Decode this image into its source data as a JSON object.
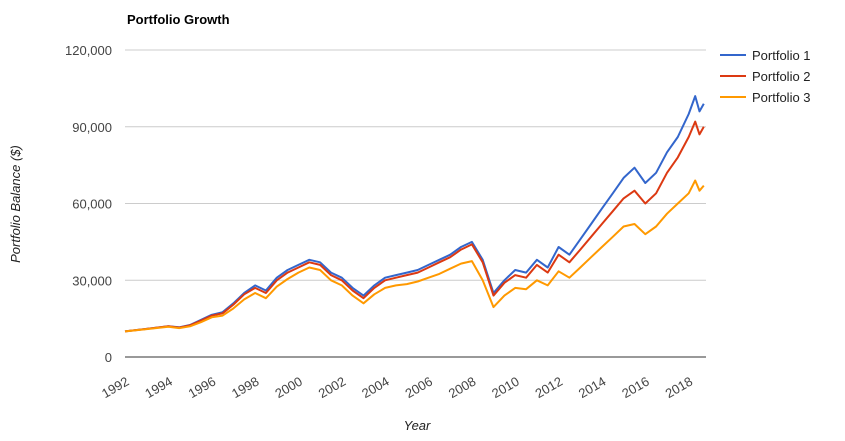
{
  "chart_data": {
    "type": "line",
    "title": "Portfolio Growth",
    "xlabel": "Year",
    "ylabel": "Portfolio Balance ($)",
    "xlim": [
      1992,
      2018.8
    ],
    "ylim": [
      0,
      120000
    ],
    "y_ticks": [
      0,
      30000,
      60000,
      90000,
      120000
    ],
    "y_tick_labels": [
      "0",
      "30,000",
      "60,000",
      "90,000",
      "120,000"
    ],
    "x_ticks": [
      1992,
      1994,
      1996,
      1998,
      2000,
      2002,
      2004,
      2006,
      2008,
      2010,
      2012,
      2014,
      2016,
      2018
    ],
    "x_tick_labels": [
      "1992",
      "1994",
      "1996",
      "1998",
      "2000",
      "2002",
      "2004",
      "2006",
      "2008",
      "2010",
      "2012",
      "2014",
      "2016",
      "2018"
    ],
    "grid": true,
    "legend_position": "right",
    "x": [
      1992,
      1993,
      1994,
      1994.5,
      1995,
      1995.5,
      1996,
      1996.5,
      1997,
      1997.5,
      1998,
      1998.5,
      1999,
      1999.5,
      2000,
      2000.5,
      2001,
      2001.5,
      2002,
      2002.5,
      2003,
      2003.5,
      2004,
      2004.5,
      2005,
      2005.5,
      2006,
      2006.5,
      2007,
      2007.5,
      2008,
      2008.5,
      2009,
      2009.5,
      2010,
      2010.5,
      2011,
      2011.5,
      2012,
      2012.5,
      2013,
      2013.5,
      2014,
      2014.5,
      2015,
      2015.5,
      2016,
      2016.5,
      2017,
      2017.5,
      2018,
      2018.3,
      2018.5,
      2018.7
    ],
    "series": [
      {
        "name": "Portfolio 1",
        "color": "#3366cc",
        "values": [
          10000,
          11000,
          12000,
          11600,
          12500,
          14500,
          16500,
          17500,
          21000,
          25000,
          28000,
          26000,
          31000,
          34000,
          36000,
          38000,
          37000,
          33000,
          31000,
          27000,
          24000,
          28000,
          31000,
          32000,
          33000,
          34000,
          36000,
          38000,
          40000,
          43000,
          45000,
          38000,
          25000,
          30000,
          34000,
          33000,
          38000,
          35000,
          43000,
          40000,
          46000,
          52000,
          58000,
          64000,
          70000,
          74000,
          68000,
          72000,
          80000,
          86000,
          95000,
          102000,
          96000,
          99000
        ]
      },
      {
        "name": "Portfolio 2",
        "color": "#dc3912",
        "values": [
          10000,
          11000,
          12000,
          11500,
          12400,
          14200,
          16200,
          17100,
          20500,
          24500,
          27000,
          25000,
          30000,
          33000,
          35000,
          37000,
          36000,
          32000,
          30000,
          26000,
          23000,
          27000,
          30000,
          31000,
          32000,
          33000,
          35000,
          37000,
          39000,
          42000,
          44000,
          37000,
          24000,
          29000,
          32000,
          31000,
          36000,
          33000,
          40000,
          37000,
          42000,
          47000,
          52000,
          57000,
          62000,
          65000,
          60000,
          64000,
          72000,
          78000,
          86000,
          92000,
          87000,
          90000
        ]
      },
      {
        "name": "Portfolio 3",
        "color": "#ff9900",
        "values": [
          10000,
          10900,
          11800,
          11300,
          12000,
          13600,
          15500,
          16200,
          19000,
          22500,
          25000,
          23000,
          27500,
          30500,
          33000,
          35000,
          34000,
          30000,
          28000,
          24000,
          21000,
          24500,
          27000,
          28000,
          28500,
          29500,
          31000,
          32500,
          34500,
          36500,
          37500,
          30000,
          19500,
          24000,
          27000,
          26500,
          30000,
          28000,
          33500,
          31000,
          35000,
          39000,
          43000,
          47000,
          51000,
          52000,
          48000,
          51000,
          56000,
          60000,
          64000,
          69000,
          65000,
          67000
        ]
      }
    ]
  }
}
